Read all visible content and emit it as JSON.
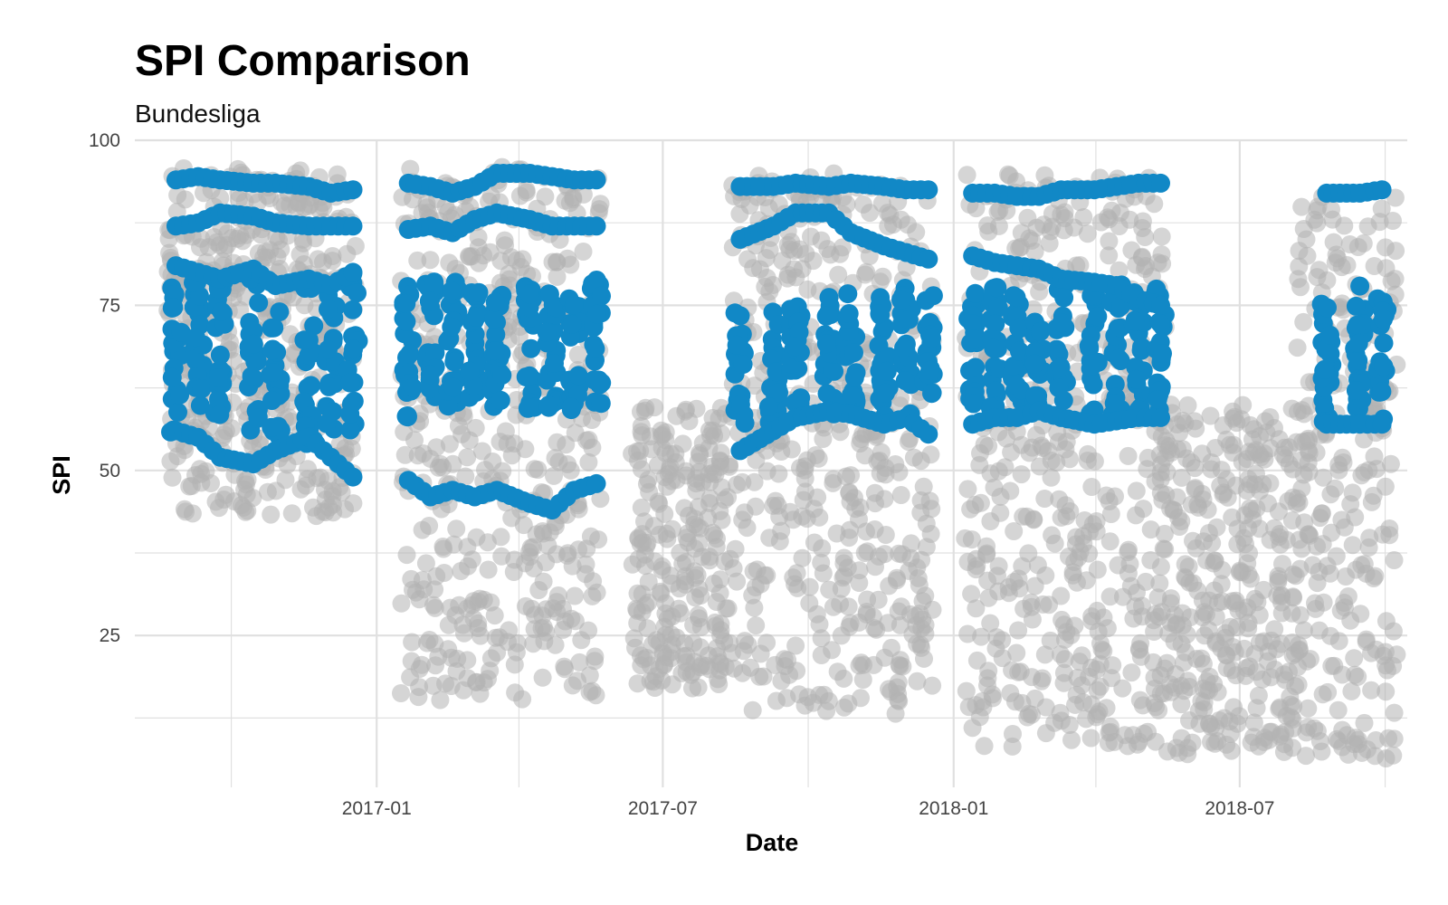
{
  "chart_data": {
    "type": "scatter",
    "title": "SPI Comparison",
    "subtitle": "Bundesliga",
    "xlabel": "Date",
    "ylabel": "SPI",
    "x_axis": {
      "type": "date",
      "range": [
        "2016-08-01",
        "2018-10-15"
      ],
      "tick_labels": [
        "2017-01",
        "2017-07",
        "2018-01",
        "2018-07"
      ],
      "tick_dates": [
        "2017-01-01",
        "2017-07-01",
        "2018-01-01",
        "2018-07-01"
      ],
      "minor_tick_dates": [
        "2016-10-01",
        "2017-04-01",
        "2017-10-01",
        "2018-04-01",
        "2018-10-01"
      ]
    },
    "y_axis": {
      "range": [
        2,
        100
      ],
      "ticks": [
        25,
        50,
        75,
        100
      ],
      "minor_ticks": [
        12.5,
        37.5,
        62.5,
        87.5
      ]
    },
    "grid": true,
    "legend": "none",
    "colors": {
      "highlight": "#1188c6",
      "other": "#b3b3b3",
      "grid": "#e0e0e0"
    },
    "series": [
      {
        "color": "#b3b3b3",
        "opacity": 0.55,
        "seasons": [
          {
            "start": "2016-08-25",
            "end": "2016-12-21",
            "y_min": 43,
            "y_max": 96
          },
          {
            "start": "2017-01-20",
            "end": "2017-05-20",
            "y_min": 15,
            "y_max": 96
          },
          {
            "start": "2017-06-15",
            "end": "2017-08-15",
            "y_min": 17,
            "y_max": 60
          },
          {
            "start": "2017-08-18",
            "end": "2017-12-20",
            "y_min": 13,
            "y_max": 95
          },
          {
            "start": "2018-01-12",
            "end": "2018-05-12",
            "y_min": 8,
            "y_max": 95
          },
          {
            "start": "2018-05-15",
            "end": "2018-08-10",
            "y_min": 7,
            "y_max": 60
          },
          {
            "start": "2018-08-10",
            "end": "2018-10-05",
            "y_min": 6,
            "y_max": 93
          }
        ]
      },
      {
        "color": "#1188c6",
        "lines": [
          {
            "x": [
              "2016-08-27",
              "2016-09-10",
              "2016-09-24",
              "2016-10-15",
              "2016-10-29",
              "2016-11-19",
              "2016-12-03",
              "2016-12-17"
            ],
            "y": [
              94,
              94.5,
              94,
              93.5,
              93.5,
              93,
              92,
              92.5
            ]
          },
          {
            "x": [
              "2016-08-27",
              "2016-09-10",
              "2016-09-24",
              "2016-10-15",
              "2016-10-29",
              "2016-11-19",
              "2016-12-03",
              "2016-12-17"
            ],
            "y": [
              87,
              87.5,
              89,
              88.5,
              87.5,
              87,
              87,
              87
            ]
          },
          {
            "x": [
              "2016-08-27",
              "2016-09-10",
              "2016-09-24",
              "2016-10-15",
              "2016-10-29",
              "2016-11-19",
              "2016-12-03",
              "2016-12-17"
            ],
            "y": [
              81,
              80,
              79,
              80.5,
              78,
              79,
              78,
              80
            ]
          },
          {
            "x": [
              "2016-08-27",
              "2016-09-10",
              "2016-09-24",
              "2016-10-15",
              "2016-10-29",
              "2016-11-19",
              "2016-12-03",
              "2016-12-17"
            ],
            "y": [
              56,
              55,
              52,
              51,
              53,
              55,
              52,
              49
            ]
          },
          {
            "x": [
              "2017-01-21",
              "2017-02-04",
              "2017-02-18",
              "2017-03-04",
              "2017-03-18",
              "2017-04-08",
              "2017-04-22",
              "2017-05-06",
              "2017-05-20"
            ],
            "y": [
              93.5,
              93,
              92,
              93,
              95,
              95,
              94.5,
              94,
              94
            ]
          },
          {
            "x": [
              "2017-01-21",
              "2017-02-04",
              "2017-02-18",
              "2017-03-04",
              "2017-03-18",
              "2017-04-08",
              "2017-04-22",
              "2017-05-06",
              "2017-05-20"
            ],
            "y": [
              86.5,
              87,
              86,
              88,
              89,
              88,
              87,
              87,
              87
            ]
          },
          {
            "x": [
              "2017-01-21",
              "2017-02-04",
              "2017-02-18",
              "2017-03-04",
              "2017-03-18",
              "2017-04-08",
              "2017-04-22",
              "2017-05-06",
              "2017-05-20"
            ],
            "y": [
              48.5,
              46,
              47,
              46,
              47,
              45,
              44,
              47,
              48
            ]
          },
          {
            "x": [
              "2017-08-19",
              "2017-09-09",
              "2017-09-23",
              "2017-10-14",
              "2017-10-28",
              "2017-11-18",
              "2017-12-02",
              "2017-12-16"
            ],
            "y": [
              93,
              93,
              93.5,
              93,
              93.5,
              93,
              92.5,
              92.5
            ]
          },
          {
            "x": [
              "2017-08-19",
              "2017-09-09",
              "2017-09-23",
              "2017-10-14",
              "2017-10-28",
              "2017-11-18",
              "2017-12-02",
              "2017-12-16"
            ],
            "y": [
              85,
              87,
              89,
              89,
              86,
              84,
              83,
              82
            ]
          },
          {
            "x": [
              "2017-08-19",
              "2017-09-09",
              "2017-09-23",
              "2017-10-14",
              "2017-10-28",
              "2017-11-18",
              "2017-12-02",
              "2017-12-16"
            ],
            "y": [
              53,
              56,
              58,
              59,
              58.5,
              57,
              58,
              55.5
            ]
          },
          {
            "x": [
              "2018-01-13",
              "2018-01-27",
              "2018-02-10",
              "2018-02-24",
              "2018-03-10",
              "2018-03-31",
              "2018-04-14",
              "2018-04-28",
              "2018-05-12"
            ],
            "y": [
              92,
              92,
              91.5,
              91.5,
              92.5,
              92.5,
              93,
              93.5,
              93.5
            ]
          },
          {
            "x": [
              "2018-01-13",
              "2018-01-27",
              "2018-02-10",
              "2018-02-24",
              "2018-03-10",
              "2018-03-31",
              "2018-04-14",
              "2018-04-28",
              "2018-05-12"
            ],
            "y": [
              82.5,
              81.5,
              81,
              80.5,
              79,
              78.5,
              78,
              76,
              75
            ]
          },
          {
            "x": [
              "2018-01-13",
              "2018-01-27",
              "2018-02-10",
              "2018-02-24",
              "2018-03-10",
              "2018-03-31",
              "2018-04-14",
              "2018-04-28",
              "2018-05-12"
            ],
            "y": [
              57,
              58,
              58,
              59,
              58,
              57,
              57.5,
              58,
              58
            ]
          },
          {
            "x": [
              "2018-08-25",
              "2018-09-15",
              "2018-09-29"
            ],
            "y": [
              92,
              92,
              92.5
            ]
          },
          {
            "x": [
              "2018-08-25",
              "2018-09-15",
              "2018-09-29"
            ],
            "y": [
              57,
              57,
              57
            ]
          }
        ],
        "columns": [
          {
            "x": "2016-08-27",
            "y_min": 55,
            "y_max": 78
          },
          {
            "x": "2016-09-10",
            "y_min": 56,
            "y_max": 80
          },
          {
            "x": "2016-09-24",
            "y_min": 57,
            "y_max": 79
          },
          {
            "x": "2016-10-15",
            "y_min": 56,
            "y_max": 80
          },
          {
            "x": "2016-10-29",
            "y_min": 55,
            "y_max": 79
          },
          {
            "x": "2016-11-19",
            "y_min": 54,
            "y_max": 78
          },
          {
            "x": "2016-12-03",
            "y_min": 55,
            "y_max": 79
          },
          {
            "x": "2016-12-17",
            "y_min": 56,
            "y_max": 80
          },
          {
            "x": "2017-01-21",
            "y_min": 58,
            "y_max": 79
          },
          {
            "x": "2017-02-04",
            "y_min": 58,
            "y_max": 80
          },
          {
            "x": "2017-02-18",
            "y_min": 58,
            "y_max": 79
          },
          {
            "x": "2017-03-04",
            "y_min": 59,
            "y_max": 78
          },
          {
            "x": "2017-03-18",
            "y_min": 58,
            "y_max": 77
          },
          {
            "x": "2017-04-08",
            "y_min": 59,
            "y_max": 78
          },
          {
            "x": "2017-04-22",
            "y_min": 59,
            "y_max": 78
          },
          {
            "x": "2017-05-06",
            "y_min": 59,
            "y_max": 78
          },
          {
            "x": "2017-05-20",
            "y_min": 60,
            "y_max": 79
          },
          {
            "x": "2017-08-19",
            "y_min": 57,
            "y_max": 75
          },
          {
            "x": "2017-09-09",
            "y_min": 57,
            "y_max": 75
          },
          {
            "x": "2017-09-23",
            "y_min": 58,
            "y_max": 76
          },
          {
            "x": "2017-10-14",
            "y_min": 58,
            "y_max": 78
          },
          {
            "x": "2017-10-28",
            "y_min": 58,
            "y_max": 77
          },
          {
            "x": "2017-11-18",
            "y_min": 58,
            "y_max": 77
          },
          {
            "x": "2017-12-02",
            "y_min": 58,
            "y_max": 78
          },
          {
            "x": "2017-12-16",
            "y_min": 60,
            "y_max": 78
          },
          {
            "x": "2018-01-13",
            "y_min": 59,
            "y_max": 77
          },
          {
            "x": "2018-01-27",
            "y_min": 59,
            "y_max": 78
          },
          {
            "x": "2018-02-10",
            "y_min": 59,
            "y_max": 78
          },
          {
            "x": "2018-02-24",
            "y_min": 59,
            "y_max": 78
          },
          {
            "x": "2018-03-10",
            "y_min": 59,
            "y_max": 79
          },
          {
            "x": "2018-03-31",
            "y_min": 58,
            "y_max": 79
          },
          {
            "x": "2018-04-14",
            "y_min": 58,
            "y_max": 79
          },
          {
            "x": "2018-04-28",
            "y_min": 58,
            "y_max": 79
          },
          {
            "x": "2018-05-12",
            "y_min": 58,
            "y_max": 78
          },
          {
            "x": "2018-08-25",
            "y_min": 57,
            "y_max": 78
          },
          {
            "x": "2018-09-15",
            "y_min": 58,
            "y_max": 78
          },
          {
            "x": "2018-09-29",
            "y_min": 57,
            "y_max": 78
          }
        ]
      }
    ]
  }
}
